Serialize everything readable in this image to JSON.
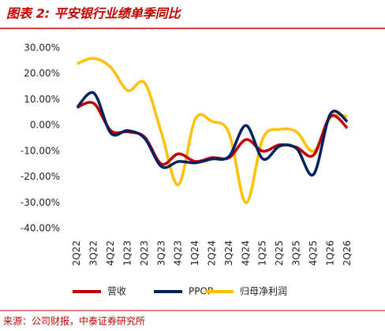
{
  "chart_data": {
    "type": "line",
    "title": "图表 2: 平安银行业绩单季同比",
    "source": "来源：公司财报，中泰证券研究所",
    "categories": [
      "2Q22",
      "3Q22",
      "4Q22",
      "1Q23",
      "2Q23",
      "3Q23",
      "4Q23",
      "1Q24",
      "2Q24",
      "3Q24",
      "4Q24",
      "1Q25",
      "2Q25",
      "3Q25",
      "4Q25",
      "1Q26",
      "2Q26"
    ],
    "series": [
      {
        "name": "营收",
        "color": "#c00000",
        "values": [
          7,
          8.5,
          -2,
          -2.5,
          -4.5,
          -15,
          -11,
          -14,
          -12.5,
          -12.5,
          -5.5,
          -10,
          -7.5,
          -8.5,
          -11.5,
          3.5,
          -1
        ]
      },
      {
        "name": "PPOP",
        "color": "#002060",
        "values": [
          7,
          12.5,
          -3,
          -2,
          -5,
          -16,
          -14,
          -14.5,
          -13,
          -12,
          0,
          -13,
          -8,
          -9,
          -19,
          4.5,
          1.5
        ]
      },
      {
        "name": "归母净利润",
        "color": "#ffc000",
        "values": [
          24,
          26,
          22.5,
          13.5,
          16.5,
          -3,
          -23,
          2.5,
          1.5,
          -3,
          -30,
          -5,
          -1.5,
          -2.5,
          -10,
          3,
          3.5
        ]
      }
    ],
    "ylim": [
      -40,
      30
    ],
    "yticks": [
      {
        "value": -40,
        "label": "-40.00%"
      },
      {
        "value": -30,
        "label": "-30.00%"
      },
      {
        "value": -20,
        "label": "-20.00%"
      },
      {
        "value": -10,
        "label": "-10.00%"
      },
      {
        "value": 0,
        "label": "0.00%"
      },
      {
        "value": 10,
        "label": "10.00%"
      },
      {
        "value": 20,
        "label": "20.00%"
      },
      {
        "value": 30,
        "label": "30.00%"
      }
    ],
    "grid": false
  }
}
